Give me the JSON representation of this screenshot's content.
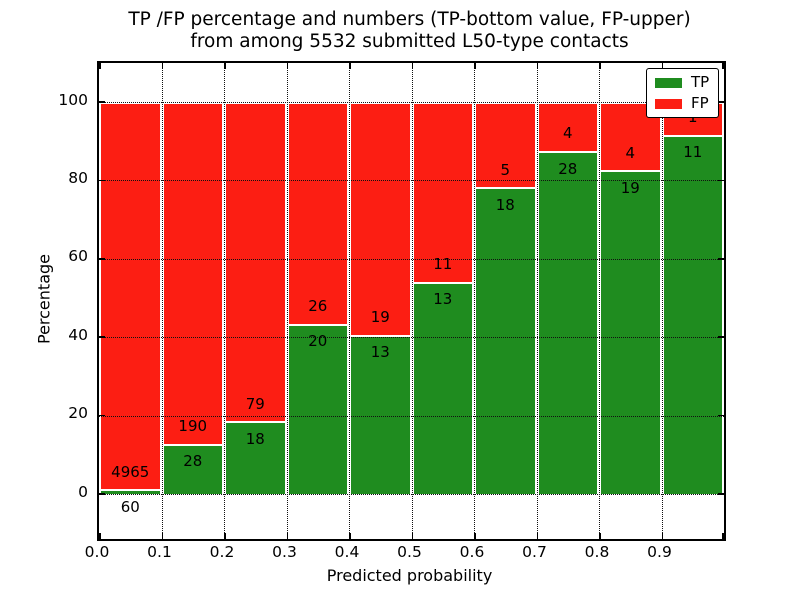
{
  "figure": {
    "title_line1": "TP /FP percentage and numbers (TP-bottom value, FP-upper)",
    "title_line2": "from among 5532 submitted L50-type contacts",
    "xlabel": "Predicted probability",
    "ylabel": "Percentage"
  },
  "legend": {
    "position": "upper right",
    "items": [
      {
        "label": "TP",
        "color": "#1f8c1f"
      },
      {
        "label": "FP",
        "color": "#fc1e13"
      }
    ]
  },
  "chart_data": {
    "type": "bar",
    "variant": "stacked-percentage",
    "title": "TP /FP percentage and numbers (TP-bottom value, FP-upper) from among 5532 submitted L50-type contacts",
    "xlabel": "Predicted probability",
    "ylabel": "Percentage",
    "total_contacts": 5532,
    "xlim": [
      0.0,
      1.0
    ],
    "ylim": [
      -11.5,
      110
    ],
    "grid": true,
    "x_tick_labels": [
      "0.0",
      "0.1",
      "0.2",
      "0.3",
      "0.4",
      "0.5",
      "0.6",
      "0.7",
      "0.8",
      "0.9"
    ],
    "y_ticks": [
      0,
      20,
      40,
      60,
      80,
      100
    ],
    "y_tick_labels": [
      "0",
      "20",
      "40",
      "60",
      "80",
      "100"
    ],
    "legend_position": "upper right",
    "colors": {
      "tp": "#1f8c1f",
      "fp": "#fc1e13",
      "bar_edge": "#ffffff",
      "grid": "#111111"
    },
    "series": [
      {
        "name": "TP",
        "color": "#1f8c1f",
        "counts": [
          60,
          28,
          18,
          20,
          13,
          13,
          18,
          28,
          19,
          11
        ]
      },
      {
        "name": "FP",
        "color": "#fc1e13",
        "counts": [
          4965,
          190,
          79,
          26,
          19,
          11,
          5,
          4,
          4,
          1
        ]
      }
    ],
    "bins": [
      {
        "range": "0.0-0.1",
        "tp": 60,
        "fp": 4965,
        "tp_pct": 1.19,
        "fp_pct": 98.81
      },
      {
        "range": "0.1-0.2",
        "tp": 28,
        "fp": 190,
        "tp_pct": 12.84,
        "fp_pct": 87.16
      },
      {
        "range": "0.2-0.3",
        "tp": 18,
        "fp": 79,
        "tp_pct": 18.56,
        "fp_pct": 81.44
      },
      {
        "range": "0.3-0.4",
        "tp": 20,
        "fp": 26,
        "tp_pct": 43.48,
        "fp_pct": 56.52
      },
      {
        "range": "0.4-0.5",
        "tp": 13,
        "fp": 19,
        "tp_pct": 40.63,
        "fp_pct": 59.37
      },
      {
        "range": "0.5-0.6",
        "tp": 13,
        "fp": 11,
        "tp_pct": 54.17,
        "fp_pct": 45.83
      },
      {
        "range": "0.6-0.7",
        "tp": 18,
        "fp": 5,
        "tp_pct": 78.26,
        "fp_pct": 21.74
      },
      {
        "range": "0.7-0.8",
        "tp": 28,
        "fp": 4,
        "tp_pct": 87.5,
        "fp_pct": 12.5
      },
      {
        "range": "0.8-0.9",
        "tp": 19,
        "fp": 4,
        "tp_pct": 82.61,
        "fp_pct": 17.39
      },
      {
        "range": "0.9-1.0",
        "tp": 11,
        "fp": 1,
        "tp_pct": 91.67,
        "fp_pct": 8.33
      }
    ]
  }
}
